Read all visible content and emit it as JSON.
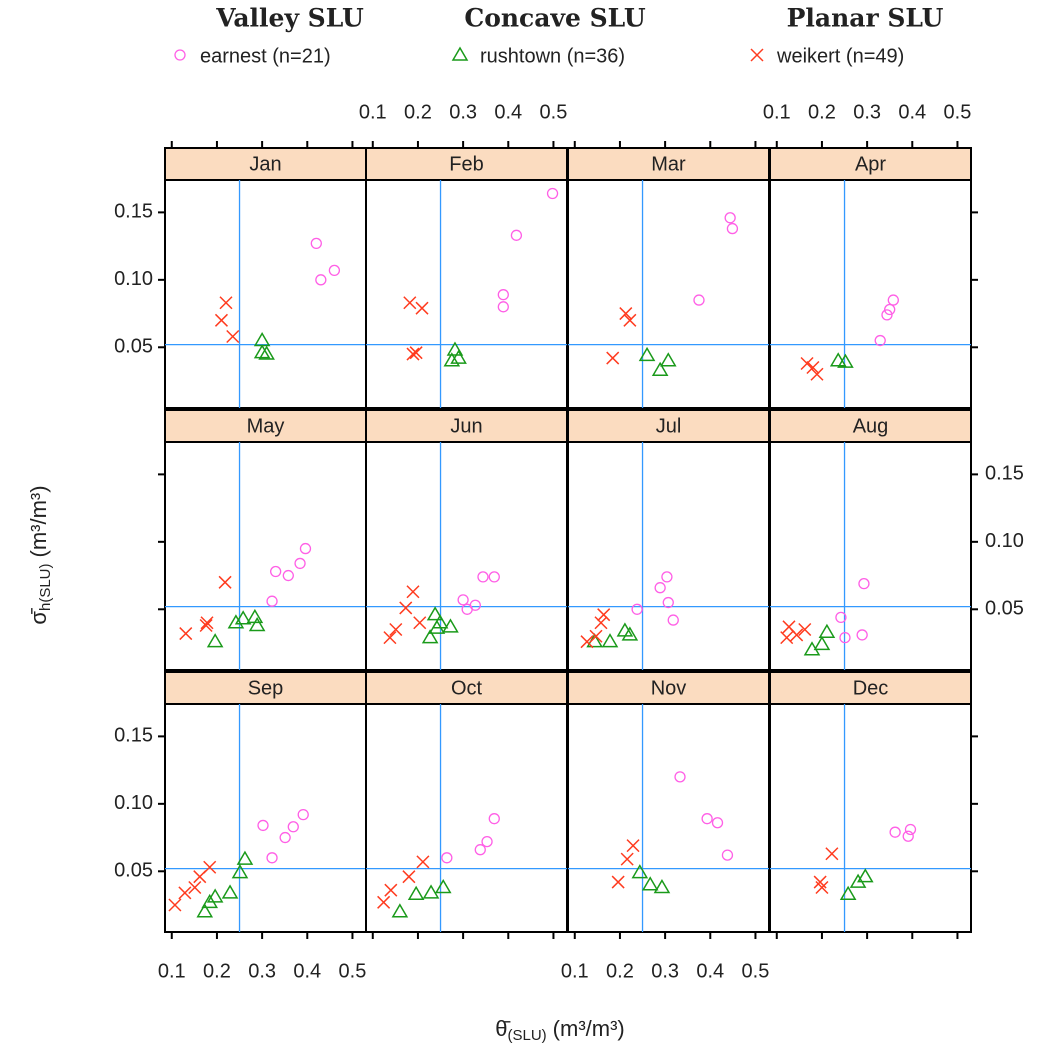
{
  "chart_data": {
    "type": "scatter",
    "x_label": {
      "symbol": "θ̄",
      "subscript": "(SLU)",
      "units": "(m³/m³)"
    },
    "y_label": {
      "symbol": "σ̄",
      "subscript": "h(SLU)",
      "units": "(m³/m³)"
    },
    "xlim": [
      0.085,
      0.53
    ],
    "ylim": [
      0.005,
      0.174
    ],
    "xticks": [
      0.1,
      0.2,
      0.3,
      0.4,
      0.5
    ],
    "yticks": [
      0.05,
      {
        "value": 0.1,
        "label": "0.10"
      },
      0.15
    ],
    "reference_lines": {
      "x": 0.25,
      "y": 0.052,
      "color": "#3399ff"
    },
    "strip_color": "#fbdcc0",
    "series": [
      {
        "group": "Valley SLU",
        "name": "earnest (n=21)",
        "color": "#ff5fe6",
        "marker": "circle"
      },
      {
        "group": "Concave SLU",
        "name": "rushtown (n=36)",
        "color": "#1a9a1a",
        "marker": "triangle"
      },
      {
        "group": "Planar SLU",
        "name": "weikert (n=49)",
        "color": "#ff3b1f",
        "marker": "x"
      }
    ],
    "panels": [
      {
        "title": "Jan",
        "points": [
          {
            "x": [
              0.42,
              0.43,
              0.46
            ],
            "y": [
              0.127,
              0.1,
              0.107
            ]
          },
          {
            "x": [
              0.3,
              0.3,
              0.31
            ],
            "y": [
              0.055,
              0.046,
              0.045
            ]
          },
          {
            "x": [
              0.22,
              0.21,
              0.235
            ],
            "y": [
              0.083,
              0.07,
              0.058
            ]
          }
        ]
      },
      {
        "title": "Feb",
        "points": [
          {
            "x": [
              0.498,
              0.418,
              0.389,
              0.389
            ],
            "y": [
              0.164,
              0.133,
              0.089,
              0.08
            ]
          },
          {
            "x": [
              0.282,
              0.275,
              0.29
            ],
            "y": [
              0.048,
              0.04,
              0.042
            ]
          },
          {
            "x": [
              0.182,
              0.209,
              0.189,
              0.196
            ],
            "y": [
              0.083,
              0.079,
              0.045,
              0.046
            ]
          }
        ]
      },
      {
        "title": "Mar",
        "points": [
          {
            "x": [
              0.444,
              0.449,
              0.375
            ],
            "y": [
              0.146,
              0.138,
              0.085
            ]
          },
          {
            "x": [
              0.26,
              0.289,
              0.307
            ],
            "y": [
              0.044,
              0.033,
              0.04
            ]
          },
          {
            "x": [
              0.184,
              0.213,
              0.222
            ],
            "y": [
              0.042,
              0.075,
              0.07
            ]
          }
        ]
      },
      {
        "title": "Apr",
        "points": [
          {
            "x": [
              0.329,
              0.344,
              0.358,
              0.35
            ],
            "y": [
              0.055,
              0.074,
              0.085,
              0.078
            ]
          },
          {
            "x": [
              0.236,
              0.252
            ],
            "y": [
              0.04,
              0.039
            ]
          },
          {
            "x": [
              0.18,
              0.189,
              0.167
            ],
            "y": [
              0.035,
              0.03,
              0.038
            ]
          }
        ]
      },
      {
        "title": "May",
        "points": [
          {
            "x": [
              0.396,
              0.384,
              0.33,
              0.358,
              0.322
            ],
            "y": [
              0.095,
              0.084,
              0.078,
              0.075,
              0.056
            ]
          },
          {
            "x": [
              0.258,
              0.284,
              0.289,
              0.196,
              0.242
            ],
            "y": [
              0.043,
              0.044,
              0.038,
              0.026,
              0.04
            ]
          },
          {
            "x": [
              0.218,
              0.178,
              0.131,
              0.176
            ],
            "y": [
              0.07,
              0.04,
              0.032,
              0.038
            ]
          }
        ]
      },
      {
        "title": "Jun",
        "points": [
          {
            "x": [
              0.344,
              0.369,
              0.3,
              0.309,
              0.327
            ],
            "y": [
              0.074,
              0.074,
              0.057,
              0.05,
              0.053
            ]
          },
          {
            "x": [
              0.238,
              0.249,
              0.227,
              0.272,
              0.242
            ],
            "y": [
              0.046,
              0.04,
              0.029,
              0.037,
              0.036
            ]
          },
          {
            "x": [
              0.189,
              0.173,
              0.151,
              0.138,
              0.204
            ],
            "y": [
              0.063,
              0.051,
              0.035,
              0.029,
              0.04
            ]
          }
        ]
      },
      {
        "title": "Jul",
        "points": [
          {
            "x": [
              0.304,
              0.289,
              0.238,
              0.318,
              0.307
            ],
            "y": [
              0.074,
              0.066,
              0.05,
              0.042,
              0.055
            ]
          },
          {
            "x": [
              0.211,
              0.178,
              0.144,
              0.222
            ],
            "y": [
              0.034,
              0.026,
              0.026,
              0.031
            ]
          },
          {
            "x": [
              0.158,
              0.127,
              0.147,
              0.164
            ],
            "y": [
              0.04,
              0.026,
              0.03,
              0.046
            ]
          }
        ]
      },
      {
        "title": "Aug",
        "points": [
          {
            "x": [
              0.293,
              0.242,
              0.289,
              0.251
            ],
            "y": [
              0.069,
              0.044,
              0.031,
              0.029
            ]
          },
          {
            "x": [
              0.178,
              0.2,
              0.211
            ],
            "y": [
              0.02,
              0.024,
              0.033
            ]
          },
          {
            "x": [
              0.127,
              0.144,
              0.122,
              0.162
            ],
            "y": [
              0.037,
              0.031,
              0.029,
              0.035
            ]
          }
        ]
      },
      {
        "title": "Sep",
        "points": [
          {
            "x": [
              0.391,
              0.369,
              0.351,
              0.302,
              0.322
            ],
            "y": [
              0.092,
              0.083,
              0.075,
              0.084,
              0.06
            ]
          },
          {
            "x": [
              0.262,
              0.251,
              0.196,
              0.173,
              0.229,
              0.184
            ],
            "y": [
              0.059,
              0.049,
              0.031,
              0.02,
              0.034,
              0.027
            ]
          },
          {
            "x": [
              0.184,
              0.162,
              0.129,
              0.107,
              0.151
            ],
            "y": [
              0.053,
              0.046,
              0.034,
              0.025,
              0.038
            ]
          }
        ]
      },
      {
        "title": "Oct",
        "points": [
          {
            "x": [
              0.369,
              0.353,
              0.338,
              0.264
            ],
            "y": [
              0.089,
              0.072,
              0.066,
              0.06
            ]
          },
          {
            "x": [
              0.229,
              0.256,
              0.16,
              0.196
            ],
            "y": [
              0.034,
              0.038,
              0.02,
              0.033
            ]
          },
          {
            "x": [
              0.18,
              0.14,
              0.124,
              0.211
            ],
            "y": [
              0.046,
              0.036,
              0.027,
              0.057
            ]
          }
        ]
      },
      {
        "title": "Nov",
        "points": [
          {
            "x": [
              0.333,
              0.393,
              0.416,
              0.438
            ],
            "y": [
              0.12,
              0.089,
              0.086,
              0.062
            ]
          },
          {
            "x": [
              0.244,
              0.267,
              0.293
            ],
            "y": [
              0.049,
              0.04,
              0.038
            ]
          },
          {
            "x": [
              0.229,
              0.216,
              0.196
            ],
            "y": [
              0.069,
              0.059,
              0.042
            ]
          }
        ]
      },
      {
        "title": "Dec",
        "points": [
          {
            "x": [
              0.396,
              0.362,
              0.391
            ],
            "y": [
              0.081,
              0.079,
              0.076
            ]
          },
          {
            "x": [
              0.258,
              0.28,
              0.296
            ],
            "y": [
              0.033,
              0.042,
              0.046
            ]
          },
          {
            "x": [
              0.222,
              0.196,
              0.2
            ],
            "y": [
              0.063,
              0.042,
              0.038
            ]
          }
        ]
      }
    ]
  }
}
